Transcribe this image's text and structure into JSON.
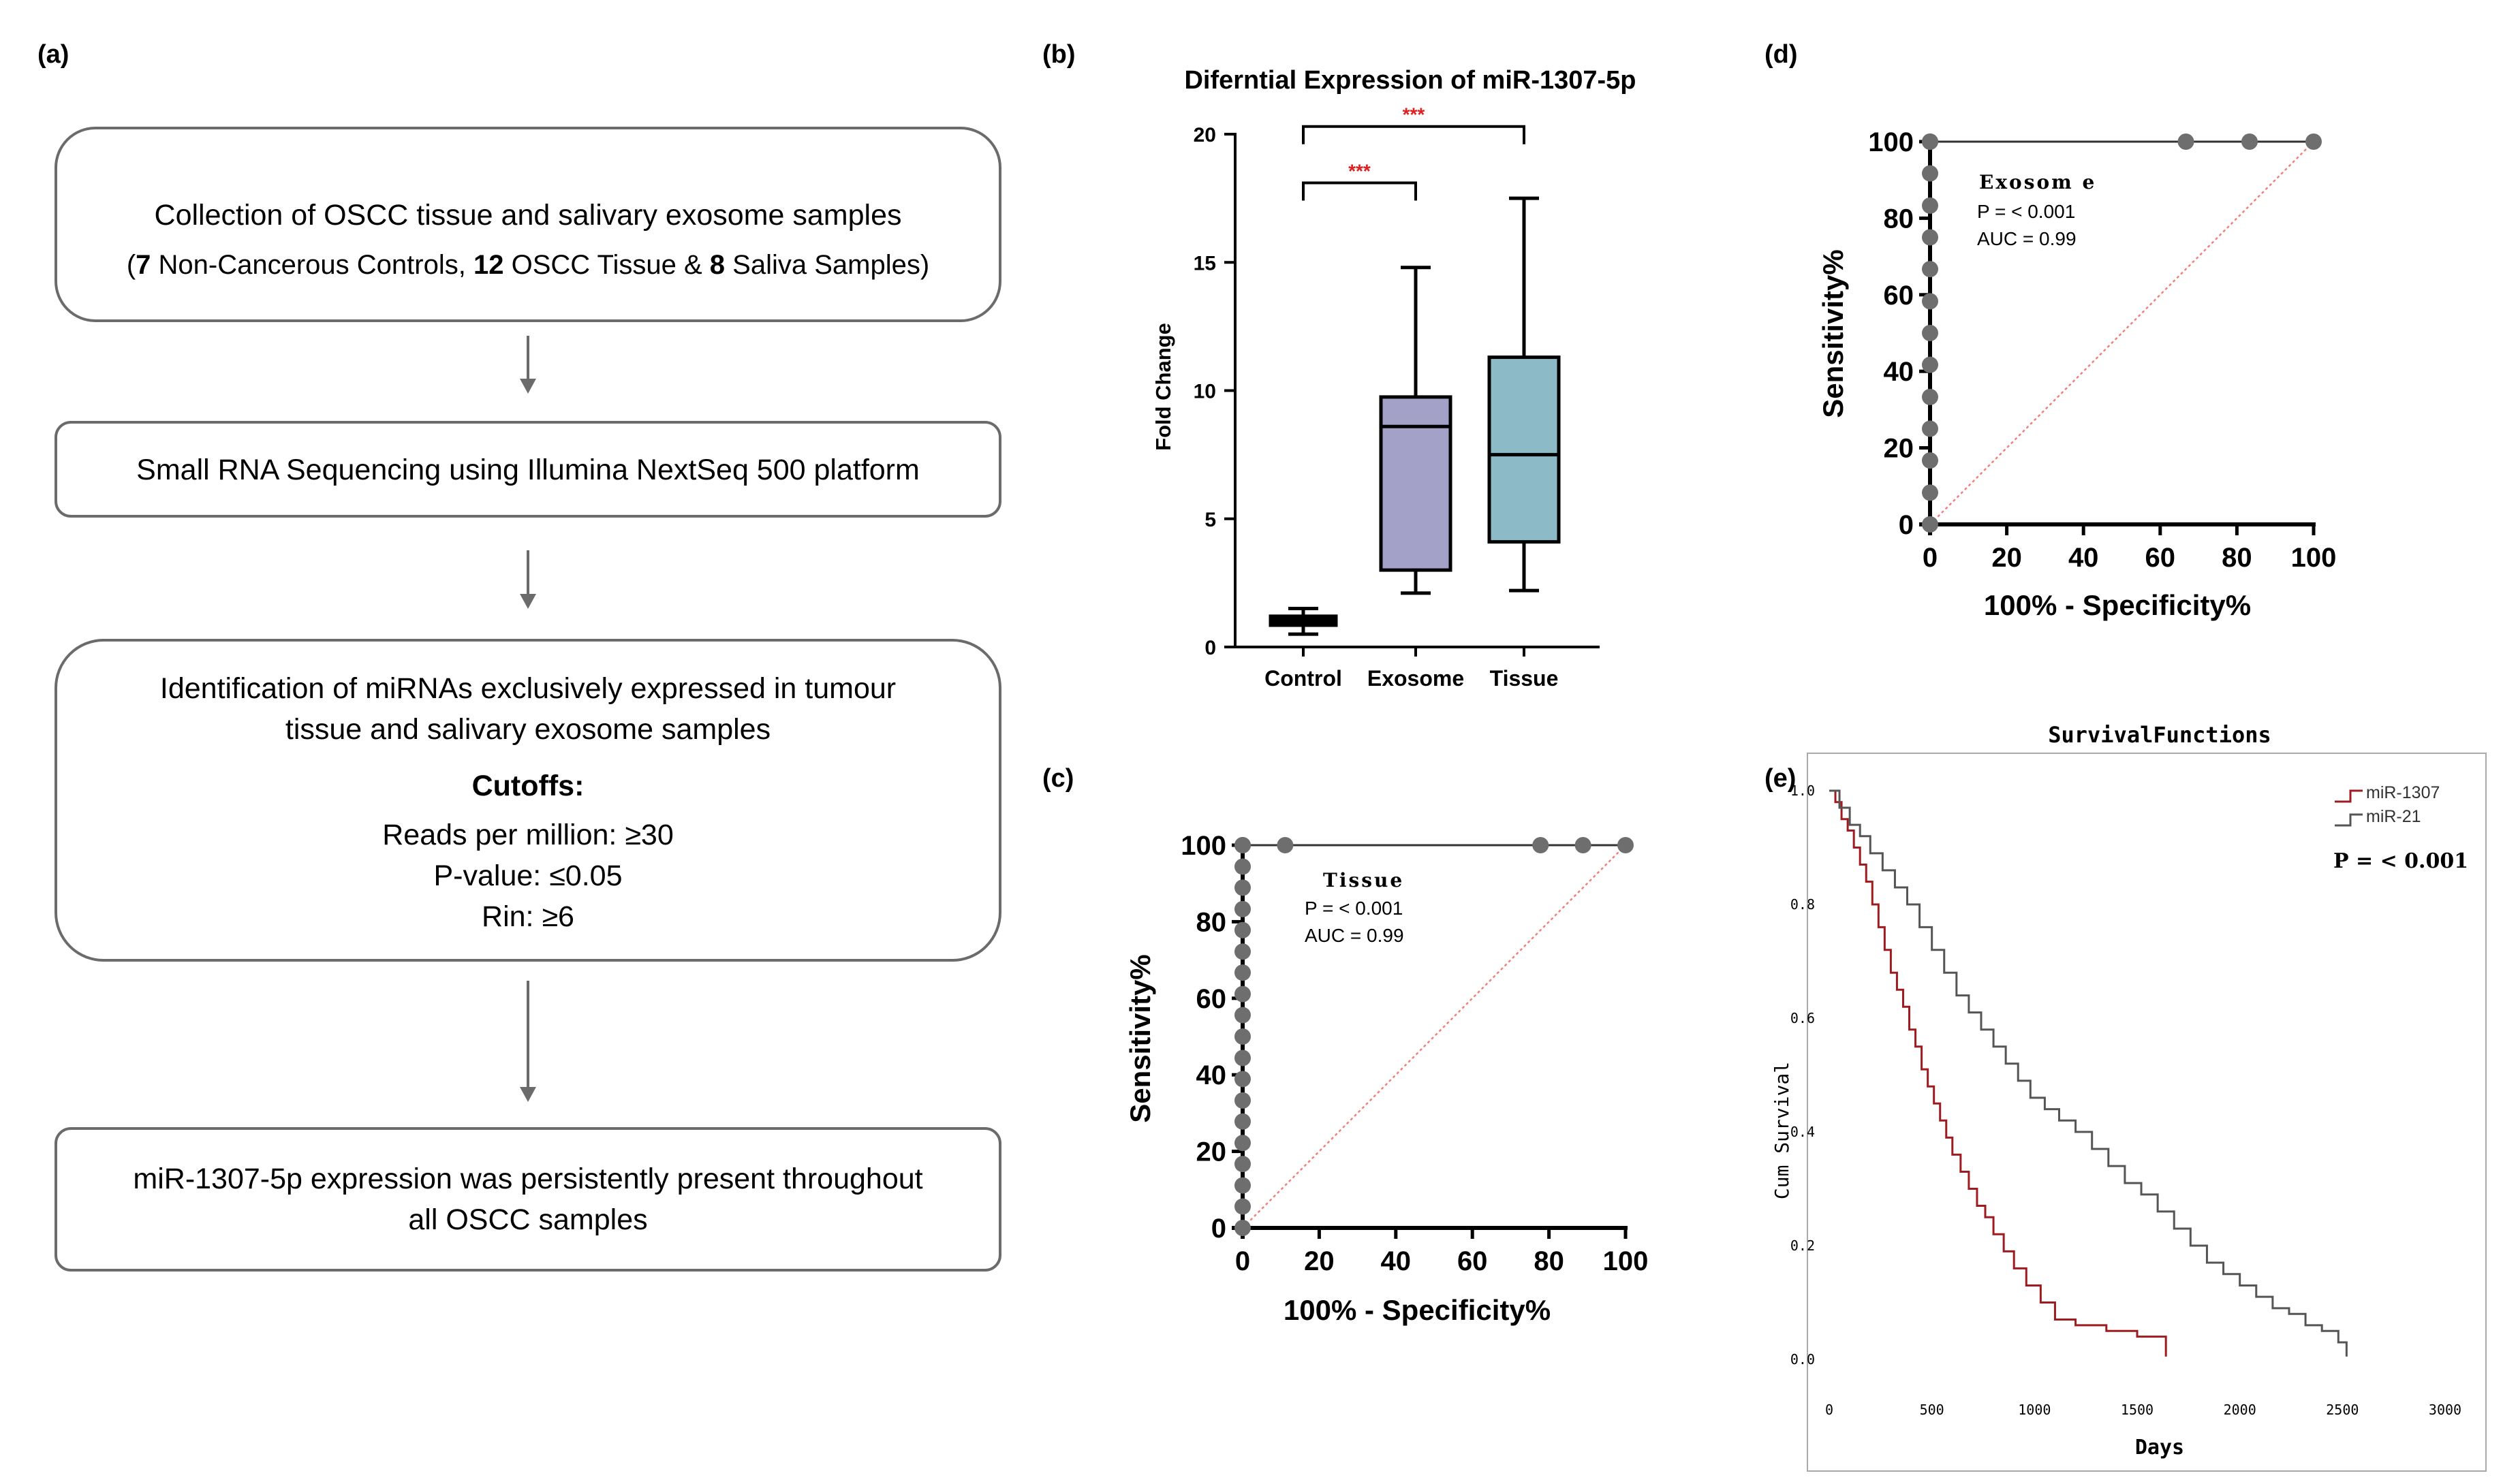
{
  "colors": {
    "box_stroke": "#6b6b6b",
    "arrow": "#6b6b6b",
    "exosome_fill": "#a4a1c8",
    "tissue_fill": "#8cbac6",
    "sig_red": "#e02020",
    "diag_red": "#f08080",
    "dot_gray": "#6e6e6e",
    "km_red": "#9e1b20",
    "km_gray": "#555555"
  },
  "panels": {
    "a": {
      "label": "(a)"
    },
    "b": {
      "label": "(b)"
    },
    "c": {
      "label": "(c)"
    },
    "d": {
      "label": "(d)"
    },
    "e": {
      "label": "(e)"
    }
  },
  "flowchart": {
    "box1": {
      "line1": "Collection of OSCC tissue and salivary exosome samples",
      "line2_parts": [
        "(",
        "7",
        " Non-Cancerous Controls, ",
        "12",
        " OSCC Tissue & ",
        "8",
        " Saliva Samples)"
      ]
    },
    "box2": {
      "line1": "Small RNA Sequencing using Illumina NextSeq 500 platform"
    },
    "box3": {
      "line1": "Identification of miRNAs exclusively expressed in tumour",
      "line2": "tissue and salivary exosome samples",
      "cutoffs_title": "Cutoffs:",
      "cutoffs": [
        "Reads per million: ≥30",
        "P-value: ≤0.05",
        "Rin: ≥6"
      ]
    },
    "box4": {
      "line1": "miR-1307-5p expression was persistently present throughout",
      "line2": "all OSCC samples"
    }
  },
  "chart_data": [
    {
      "id": "b",
      "type": "box",
      "title": "Diferntial Expression of miR-1307-5p",
      "xlabel": "",
      "ylabel": "Fold Change",
      "ylim": [
        0,
        20
      ],
      "yticks": [
        0,
        5,
        10,
        15,
        20
      ],
      "ytick_labels": [
        "0",
        "5",
        "10",
        "15",
        "20"
      ],
      "categories": [
        "Control",
        "Exosome",
        "Tissue"
      ],
      "boxes": [
        {
          "name": "Control",
          "min": 0.5,
          "q1": 0.85,
          "median": 1.0,
          "q3": 1.2,
          "max": 1.5
        },
        {
          "name": "Exosome",
          "min": 2.1,
          "q1": 3.0,
          "median": 8.6,
          "q3": 9.75,
          "max": 14.8
        },
        {
          "name": "Tissue",
          "min": 2.2,
          "q1": 4.1,
          "median": 7.5,
          "q3": 11.3,
          "max": 17.5
        }
      ],
      "significance": [
        {
          "from": "Control",
          "to": "Exosome",
          "label": "***",
          "y": 18.1
        },
        {
          "from": "Control",
          "to": "Tissue",
          "label": "***",
          "y": 20.3
        }
      ]
    },
    {
      "id": "c",
      "type": "line",
      "title": "Tissue",
      "xlabel": "100% - Specificity%",
      "ylabel": "Sensitivity%",
      "xlim": [
        0,
        100
      ],
      "ylim": [
        0,
        100
      ],
      "xticks": [
        0,
        20,
        40,
        60,
        80,
        100
      ],
      "xtick_labels": [
        "0",
        "20",
        "40",
        "60",
        "80",
        "100"
      ],
      "yticks": [
        0,
        20,
        40,
        60,
        80,
        100
      ],
      "ytick_labels": [
        "0",
        "20",
        "40",
        "60",
        "80",
        "100"
      ],
      "series": [
        {
          "name": "ROC",
          "x": [
            0,
            0,
            0,
            0,
            0,
            0,
            0,
            0,
            0,
            0,
            0,
            0,
            0,
            0,
            0,
            0,
            0,
            0,
            0,
            0,
            11.1,
            77.8,
            88.9,
            100
          ],
          "y": [
            0,
            5.6,
            11.1,
            16.7,
            22.2,
            27.8,
            33.3,
            38.9,
            44.4,
            50,
            55.6,
            61.1,
            66.7,
            72.2,
            77.8,
            83.3,
            88.9,
            94.4,
            100,
            100,
            100,
            100,
            100,
            100
          ]
        },
        {
          "name": "Reference",
          "x": [
            0,
            100
          ],
          "y": [
            0,
            100
          ]
        }
      ],
      "annotations": [
        "Tissue",
        "P = < 0.001",
        "AUC = 0.99"
      ]
    },
    {
      "id": "d",
      "type": "line",
      "title": "Exosome",
      "xlabel": "100% - Specificity%",
      "ylabel": "Sensitivity%",
      "xlim": [
        0,
        100
      ],
      "ylim": [
        0,
        100
      ],
      "xticks": [
        0,
        20,
        40,
        60,
        80,
        100
      ],
      "xtick_labels": [
        "0",
        "20",
        "40",
        "60",
        "80",
        "100"
      ],
      "yticks": [
        0,
        20,
        40,
        60,
        80,
        100
      ],
      "ytick_labels": [
        "0",
        "20",
        "40",
        "60",
        "80",
        "100"
      ],
      "series": [
        {
          "name": "ROC",
          "x": [
            0,
            0,
            0,
            0,
            0,
            0,
            0,
            0,
            0,
            0,
            0,
            0,
            0,
            0,
            66.7,
            83.3,
            100
          ],
          "y": [
            0,
            8.3,
            16.7,
            25,
            33.3,
            41.7,
            50,
            58.3,
            66.7,
            75,
            83.3,
            91.7,
            100,
            100,
            100,
            100,
            100
          ]
        },
        {
          "name": "Reference",
          "x": [
            0,
            100
          ],
          "y": [
            0,
            100
          ]
        }
      ],
      "annotations": [
        "Exosom e",
        "P = < 0.001",
        "AUC = 0.99"
      ]
    },
    {
      "id": "e",
      "type": "line",
      "title": "SurvivalFunctions",
      "xlabel": "Days",
      "ylabel": "Cum Survival",
      "xlim": [
        0,
        3000
      ],
      "ylim": [
        0,
        1.0
      ],
      "xticks": [
        0,
        500,
        1000,
        1500,
        2000,
        2500,
        3000
      ],
      "xtick_labels": [
        "0",
        "500",
        "1000",
        "1500",
        "2000",
        "2500",
        "3000"
      ],
      "yticks": [
        0,
        0.2,
        0.4,
        0.6,
        0.8,
        1.0
      ],
      "ytick_labels": [
        "0.0",
        "0.2",
        "0.4",
        "0.6",
        "0.8",
        "1.0"
      ],
      "legend": "top-right",
      "series": [
        {
          "name": "miR-1307",
          "color_key": "km_red",
          "x": [
            0,
            30,
            60,
            90,
            120,
            150,
            180,
            210,
            240,
            270,
            300,
            330,
            360,
            390,
            420,
            450,
            480,
            510,
            540,
            570,
            600,
            640,
            680,
            720,
            760,
            800,
            850,
            900,
            960,
            1030,
            1100,
            1200,
            1350,
            1500,
            1640,
            1640
          ],
          "y": [
            1.0,
            0.98,
            0.95,
            0.93,
            0.9,
            0.87,
            0.84,
            0.8,
            0.76,
            0.72,
            0.68,
            0.65,
            0.62,
            0.58,
            0.55,
            0.51,
            0.48,
            0.45,
            0.42,
            0.39,
            0.36,
            0.33,
            0.3,
            0.27,
            0.25,
            0.22,
            0.19,
            0.16,
            0.13,
            0.1,
            0.07,
            0.06,
            0.05,
            0.04,
            0.02,
            0.005
          ]
        },
        {
          "name": "miR-21",
          "color_key": "km_gray",
          "x": [
            0,
            50,
            100,
            150,
            200,
            260,
            320,
            380,
            440,
            500,
            560,
            620,
            680,
            740,
            800,
            860,
            920,
            980,
            1050,
            1120,
            1200,
            1280,
            1360,
            1440,
            1520,
            1600,
            1680,
            1760,
            1840,
            1920,
            2000,
            2080,
            2160,
            2240,
            2320,
            2400,
            2480,
            2520,
            2520
          ],
          "y": [
            1.0,
            0.97,
            0.94,
            0.92,
            0.89,
            0.86,
            0.83,
            0.8,
            0.76,
            0.72,
            0.68,
            0.64,
            0.61,
            0.58,
            0.55,
            0.52,
            0.49,
            0.46,
            0.44,
            0.42,
            0.4,
            0.37,
            0.34,
            0.31,
            0.29,
            0.26,
            0.23,
            0.2,
            0.17,
            0.15,
            0.13,
            0.11,
            0.09,
            0.08,
            0.06,
            0.05,
            0.03,
            0.02,
            0.005
          ]
        }
      ],
      "annotations": [
        "P = < 0.001"
      ]
    }
  ]
}
